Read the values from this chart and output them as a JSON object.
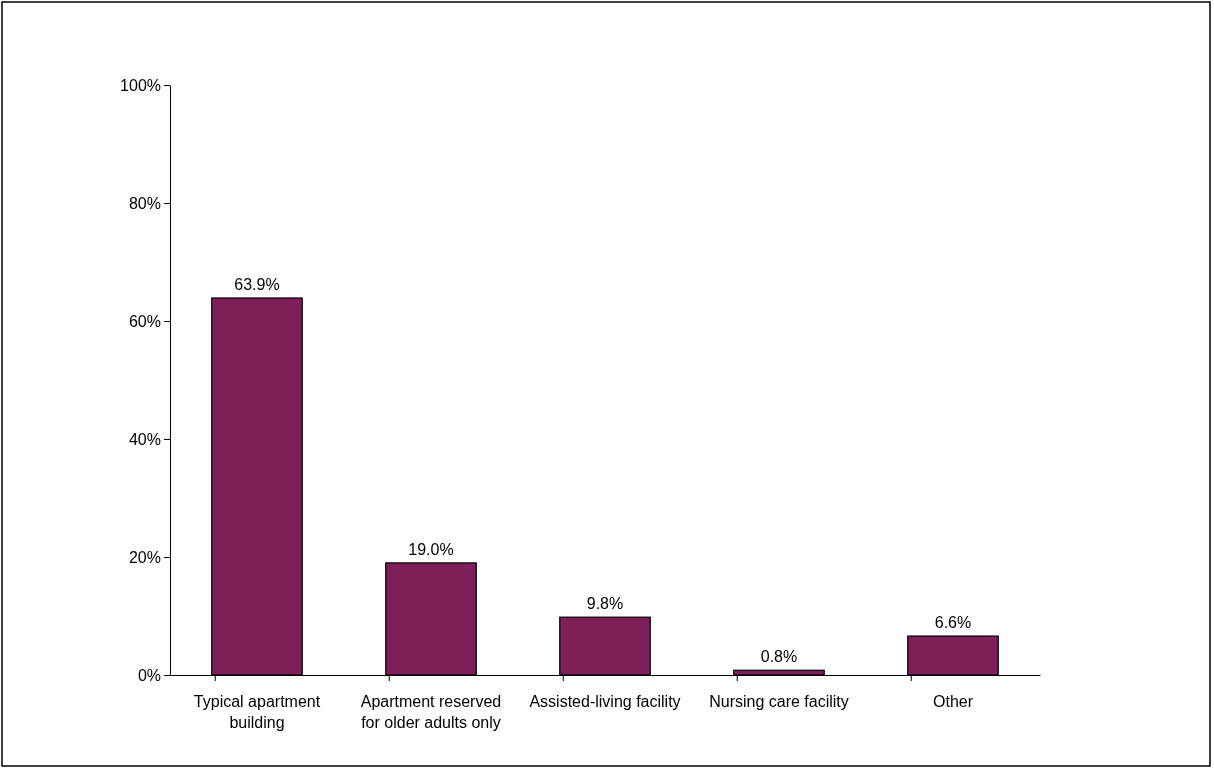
{
  "chart_data": {
    "type": "bar",
    "categories": [
      "Typical apartment building",
      "Apartment reserved for older adults only",
      "Assisted-living facility",
      "Nursing care facility",
      "Other"
    ],
    "values": [
      63.9,
      19.0,
      9.8,
      0.8,
      6.6
    ],
    "value_labels": [
      "63.9%",
      "19.0%",
      "9.8%",
      "0.8%",
      "6.6%"
    ],
    "color": "#7f1f5a",
    "ylim": [
      0,
      100
    ],
    "yticks": [
      {
        "value": 0,
        "label": "0%"
      },
      {
        "value": 20,
        "label": "20%"
      },
      {
        "value": 40,
        "label": "40%"
      },
      {
        "value": 60,
        "label": "60%"
      },
      {
        "value": 80,
        "label": "80%"
      },
      {
        "value": 100,
        "label": "100%"
      }
    ],
    "grid": false
  }
}
